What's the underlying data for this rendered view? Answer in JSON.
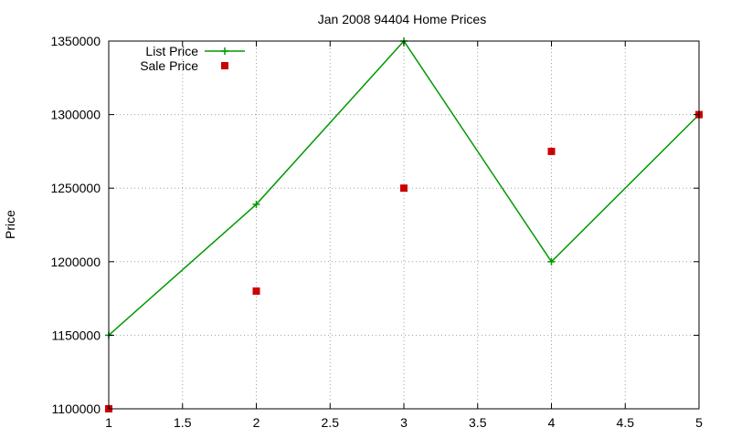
{
  "chart_data": {
    "type": "line",
    "title": "Jan 2008 94404 Home Prices",
    "xlabel": "",
    "ylabel": "Price",
    "xlim": [
      1,
      5
    ],
    "ylim": [
      1100000,
      1350000
    ],
    "xticks": [
      1,
      1.5,
      2,
      2.5,
      3,
      3.5,
      4,
      4.5,
      5
    ],
    "xtick_labels": [
      "1",
      "1.5",
      "2",
      "2.5",
      "3",
      "3.5",
      "4",
      "4.5",
      "5"
    ],
    "yticks": [
      1100000,
      1150000,
      1200000,
      1250000,
      1300000,
      1350000
    ],
    "ytick_labels": [
      "1100000",
      "1150000",
      "1200000",
      "1250000",
      "1300000",
      "1350000"
    ],
    "grid": true,
    "legend_position": "top-left",
    "series": [
      {
        "name": "List Price",
        "type": "linespoints",
        "color": "#009900",
        "marker": "plus",
        "x": [
          1,
          2,
          3,
          4,
          5
        ],
        "y": [
          1150000,
          1239000,
          1350000,
          1200000,
          1300000
        ]
      },
      {
        "name": "Sale Price",
        "type": "points",
        "color": "#cc0000",
        "marker": "square",
        "x": [
          1,
          2,
          3,
          4,
          5
        ],
        "y": [
          1100000,
          1180000,
          1250000,
          1275000,
          1300000
        ]
      }
    ]
  }
}
